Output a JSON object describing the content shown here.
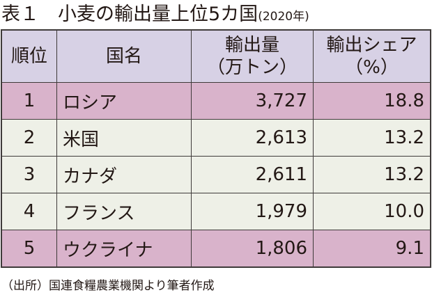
{
  "header": {
    "title": "表１　小麦の輸出量上位5カ国",
    "subtitle": "(2020年)"
  },
  "table": {
    "columns": [
      "順位",
      "国名",
      [
        "輸出量",
        "（万トン）"
      ],
      [
        "輸出シェア",
        "（%）"
      ]
    ],
    "rows": [
      [
        "1",
        "ロシア",
        "3,727",
        "18.8"
      ],
      [
        "2",
        "米国",
        "2,613",
        "13.2"
      ],
      [
        "3",
        "カナダ",
        "2,611",
        "13.2"
      ],
      [
        "4",
        "フランス",
        "1,979",
        "10.0"
      ],
      [
        "5",
        "ウクライナ",
        "1,806",
        "9.1"
      ]
    ]
  },
  "footer": {
    "source": "（出所）国連食糧農業機関より筆者作成"
  }
}
